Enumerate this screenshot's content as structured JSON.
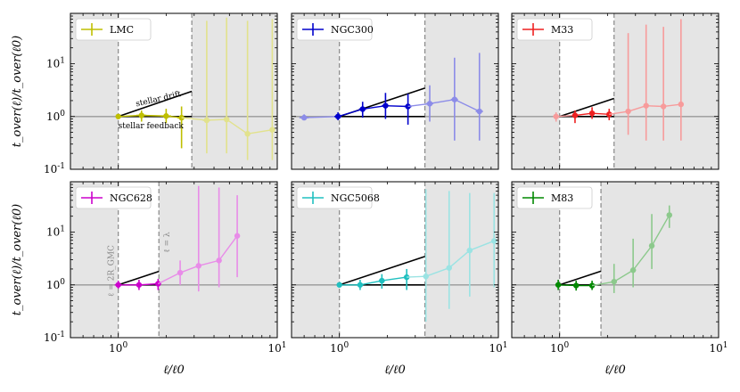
{
  "figure": {
    "ylabel": "t_over(ℓ)/t_over(ℓ0)",
    "xlabel": "ℓ/ℓ0",
    "x_tick_labels": [
      "10^0",
      "10^1"
    ],
    "y_tick_labels": [
      "10^-1",
      "10^0",
      "10^1"
    ]
  },
  "annotations": {
    "stellar_drift": "stellar drift",
    "stellar_feedback": "stellar feedback",
    "l_2rgmc": "ℓ = 2R_GMC",
    "l_lambda": "ℓ = λ"
  },
  "chart_data": [
    {
      "type": "scatter",
      "galaxy": "LMC",
      "color": "#bfbf00",
      "xlim": [
        0.5,
        10
      ],
      "ylim": [
        0.1,
        90
      ],
      "xscale": "log",
      "yscale": "log",
      "l0_line": 1.0,
      "lambda_line": 2.9,
      "drift_end": [
        2.9,
        3.0
      ],
      "points": [
        {
          "x": 1.0,
          "y": 1.0,
          "ylo": 1.0,
          "yhi": 1.0,
          "xlo": 1.0,
          "xhi": 1.0
        },
        {
          "x": 1.4,
          "y": 1.05,
          "ylo": 0.8,
          "yhi": 1.3,
          "xlo": 1.3,
          "xhi": 1.5
        },
        {
          "x": 2.0,
          "y": 1.02,
          "ylo": 0.75,
          "yhi": 1.4,
          "xlo": 1.85,
          "xhi": 2.15
        },
        {
          "x": 2.5,
          "y": 0.95,
          "ylo": 0.25,
          "yhi": 1.55,
          "xlo": 2.35,
          "xhi": 2.65
        },
        {
          "x": 3.6,
          "y": 0.85,
          "ylo": 0.2,
          "yhi": 65,
          "xlo": 3.4,
          "xhi": 3.8
        },
        {
          "x": 4.8,
          "y": 0.88,
          "ylo": 0.2,
          "yhi": 75,
          "xlo": 4.6,
          "xhi": 5.0
        },
        {
          "x": 6.5,
          "y": 0.47,
          "ylo": 0.15,
          "yhi": 65,
          "xlo": 6.3,
          "xhi": 6.7
        },
        {
          "x": 9.3,
          "y": 0.56,
          "ylo": 0.15,
          "yhi": 70,
          "xlo": 9.1,
          "xhi": 9.5
        }
      ]
    },
    {
      "type": "scatter",
      "galaxy": "NGC300",
      "color": "#0000cc",
      "xlim": [
        0.5,
        10
      ],
      "ylim": [
        0.1,
        90
      ],
      "xscale": "log",
      "yscale": "log",
      "l0_line": 1.0,
      "lambda_line": 3.45,
      "drift_end": [
        3.45,
        3.45
      ],
      "points": [
        {
          "x": 0.6,
          "y": 0.95,
          "ylo": 0.85,
          "yhi": 1.1,
          "xlo": 0.56,
          "xhi": 0.64
        },
        {
          "x": 0.98,
          "y": 1.0,
          "ylo": 0.85,
          "yhi": 1.2,
          "xlo": 0.93,
          "xhi": 1.03
        },
        {
          "x": 1.4,
          "y": 1.38,
          "ylo": 0.95,
          "yhi": 1.9,
          "xlo": 1.33,
          "xhi": 1.47
        },
        {
          "x": 1.95,
          "y": 1.6,
          "ylo": 0.9,
          "yhi": 2.8,
          "xlo": 1.85,
          "xhi": 2.05
        },
        {
          "x": 2.7,
          "y": 1.55,
          "ylo": 0.7,
          "yhi": 2.7,
          "xlo": 2.56,
          "xhi": 2.84
        },
        {
          "x": 3.7,
          "y": 1.75,
          "ylo": 0.8,
          "yhi": 3.9,
          "xlo": 3.51,
          "xhi": 3.89
        },
        {
          "x": 5.3,
          "y": 2.1,
          "ylo": 0.35,
          "yhi": 13,
          "xlo": 5.03,
          "xhi": 5.57
        },
        {
          "x": 7.6,
          "y": 1.25,
          "ylo": 0.35,
          "yhi": 16,
          "xlo": 7.2,
          "xhi": 8.0
        }
      ]
    },
    {
      "type": "scatter",
      "galaxy": "M33",
      "color": "#ee2020",
      "xlim": [
        0.5,
        10
      ],
      "ylim": [
        0.1,
        90
      ],
      "xscale": "log",
      "yscale": "log",
      "l0_line": 1.0,
      "lambda_line": 2.2,
      "drift_end": [
        2.2,
        2.2
      ],
      "points": [
        {
          "x": 0.95,
          "y": 1.0,
          "ylo": 0.8,
          "yhi": 1.2,
          "xlo": 0.91,
          "xhi": 0.99
        },
        {
          "x": 1.25,
          "y": 1.05,
          "ylo": 0.75,
          "yhi": 1.3,
          "xlo": 1.2,
          "xhi": 1.3
        },
        {
          "x": 1.6,
          "y": 1.15,
          "ylo": 0.9,
          "yhi": 1.5,
          "xlo": 1.54,
          "xhi": 1.66
        },
        {
          "x": 2.05,
          "y": 1.1,
          "ylo": 0.85,
          "yhi": 1.4,
          "xlo": 1.97,
          "xhi": 2.13
        },
        {
          "x": 2.7,
          "y": 1.25,
          "ylo": 0.45,
          "yhi": 38,
          "xlo": 2.6,
          "xhi": 2.8
        },
        {
          "x": 3.5,
          "y": 1.6,
          "ylo": 0.35,
          "yhi": 55,
          "xlo": 3.37,
          "xhi": 3.63
        },
        {
          "x": 4.5,
          "y": 1.55,
          "ylo": 0.35,
          "yhi": 50,
          "xlo": 4.33,
          "xhi": 4.67
        },
        {
          "x": 5.8,
          "y": 1.7,
          "ylo": 0.35,
          "yhi": 70,
          "xlo": 5.6,
          "xhi": 6.0
        }
      ]
    },
    {
      "type": "scatter",
      "galaxy": "NGC628",
      "color": "#cc00cc",
      "xlim": [
        0.5,
        10
      ],
      "ylim": [
        0.1,
        90
      ],
      "xscale": "log",
      "yscale": "log",
      "l0_line": 1.0,
      "lambda_line": 1.8,
      "drift_end": [
        1.8,
        1.8
      ],
      "points": [
        {
          "x": 1.0,
          "y": 1.0,
          "ylo": 0.85,
          "yhi": 1.2,
          "xlo": 0.95,
          "xhi": 1.05
        },
        {
          "x": 1.35,
          "y": 1.0,
          "ylo": 0.8,
          "yhi": 1.25,
          "xlo": 1.29,
          "xhi": 1.41
        },
        {
          "x": 1.78,
          "y": 1.05,
          "ylo": 0.8,
          "yhi": 1.3,
          "xlo": 1.7,
          "xhi": 1.86
        },
        {
          "x": 2.45,
          "y": 1.7,
          "ylo": 1.0,
          "yhi": 2.9,
          "xlo": 2.35,
          "xhi": 2.55
        },
        {
          "x": 3.2,
          "y": 2.3,
          "ylo": 0.75,
          "yhi": 75,
          "xlo": 3.07,
          "xhi": 3.33
        },
        {
          "x": 4.3,
          "y": 2.9,
          "ylo": 0.9,
          "yhi": 70,
          "xlo": 4.13,
          "xhi": 4.47
        },
        {
          "x": 5.6,
          "y": 8.5,
          "ylo": 1.4,
          "yhi": 50,
          "xlo": 5.38,
          "xhi": 5.82
        }
      ]
    },
    {
      "type": "scatter",
      "galaxy": "NGC5068",
      "color": "#20c0c0",
      "xlim": [
        0.5,
        10
      ],
      "ylim": [
        0.1,
        90
      ],
      "xscale": "log",
      "yscale": "log",
      "l0_line": 1.0,
      "lambda_line": 3.45,
      "drift_end": [
        3.45,
        3.45
      ],
      "points": [
        {
          "x": 1.0,
          "y": 1.0,
          "ylo": 1.0,
          "yhi": 1.0,
          "xlo": 1.0,
          "xhi": 1.0
        },
        {
          "x": 1.35,
          "y": 1.0,
          "ylo": 0.8,
          "yhi": 1.25,
          "xlo": 1.29,
          "xhi": 1.41
        },
        {
          "x": 1.85,
          "y": 1.2,
          "ylo": 0.85,
          "yhi": 1.6,
          "xlo": 1.77,
          "xhi": 1.93
        },
        {
          "x": 2.65,
          "y": 1.4,
          "ylo": 0.8,
          "yhi": 2.0,
          "xlo": 2.54,
          "xhi": 2.76
        },
        {
          "x": 3.5,
          "y": 1.45,
          "ylo": 0.2,
          "yhi": 65,
          "xlo": 3.36,
          "xhi": 3.64
        },
        {
          "x": 4.9,
          "y": 2.1,
          "ylo": 0.35,
          "yhi": 60,
          "xlo": 4.7,
          "xhi": 5.1
        },
        {
          "x": 6.6,
          "y": 4.5,
          "ylo": 0.6,
          "yhi": 55,
          "xlo": 6.33,
          "xhi": 6.87
        },
        {
          "x": 9.4,
          "y": 6.8,
          "ylo": 0.9,
          "yhi": 55,
          "xlo": 9.02,
          "xhi": 9.78
        }
      ]
    },
    {
      "type": "scatter",
      "galaxy": "M83",
      "color": "#008800",
      "xlim": [
        0.5,
        10
      ],
      "ylim": [
        0.1,
        90
      ],
      "xscale": "log",
      "yscale": "log",
      "l0_line": 1.0,
      "lambda_line": 1.82,
      "drift_end": [
        1.82,
        1.82
      ],
      "points": [
        {
          "x": 0.98,
          "y": 1.0,
          "ylo": 0.8,
          "yhi": 1.25,
          "xlo": 0.94,
          "xhi": 1.02
        },
        {
          "x": 1.27,
          "y": 0.97,
          "ylo": 0.78,
          "yhi": 1.2,
          "xlo": 1.22,
          "xhi": 1.32
        },
        {
          "x": 1.6,
          "y": 0.97,
          "ylo": 0.8,
          "yhi": 1.2,
          "xlo": 1.54,
          "xhi": 1.66
        },
        {
          "x": 2.2,
          "y": 1.15,
          "ylo": 0.7,
          "yhi": 2.5,
          "xlo": 2.11,
          "xhi": 2.29
        },
        {
          "x": 2.9,
          "y": 1.9,
          "ylo": 0.9,
          "yhi": 7.5,
          "xlo": 2.78,
          "xhi": 3.02
        },
        {
          "x": 3.8,
          "y": 5.5,
          "ylo": 2.0,
          "yhi": 22,
          "xlo": 3.65,
          "xhi": 3.95
        },
        {
          "x": 4.9,
          "y": 21,
          "ylo": 12,
          "yhi": 32,
          "xlo": 4.7,
          "xhi": 5.1
        }
      ]
    }
  ]
}
